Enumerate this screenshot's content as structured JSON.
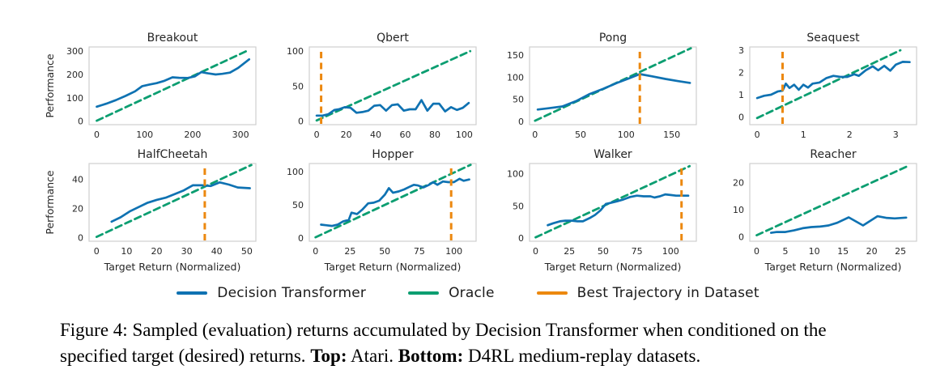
{
  "colors": {
    "decision_transformer": "#0f72b2",
    "oracle": "#0c9e71",
    "best_trajectory": "#ec880f",
    "axes_frame": "#cfcfcf",
    "text": "#262626"
  },
  "legend": {
    "items": [
      {
        "label": "Decision Transformer",
        "color": "#0f72b2",
        "style": "solid"
      },
      {
        "label": "Oracle",
        "color": "#0c9e71",
        "style": "solid"
      },
      {
        "label": "Best Trajectory in Dataset",
        "color": "#ec880f",
        "style": "solid"
      }
    ]
  },
  "caption": {
    "prefix": "Figure 4:",
    "body": "Sampled (evaluation) returns accumulated by Decision Transformer when conditioned on the specified target (desired) returns.",
    "top_label": "Top:",
    "top_text": "Atari.",
    "bottom_label": "Bottom:",
    "bottom_text": "D4RL medium-replay datasets."
  },
  "chart_data": [
    {
      "id": "breakout",
      "type": "line",
      "title": "Breakout",
      "ylabel": "Performance",
      "xlabel": null,
      "xlim": [
        -16,
        332
      ],
      "ylim": [
        -15,
        318
      ],
      "xticks": [
        0,
        100,
        200,
        300
      ],
      "yticks": [
        0,
        100,
        200,
        300
      ],
      "grid": false,
      "oracle": [
        [
          0,
          2
        ],
        [
          312,
          300
        ]
      ],
      "best_trajectory_x": null,
      "dt": [
        [
          0,
          62
        ],
        [
          20,
          75
        ],
        [
          40,
          90
        ],
        [
          60,
          108
        ],
        [
          80,
          128
        ],
        [
          95,
          150
        ],
        [
          110,
          157
        ],
        [
          125,
          163
        ],
        [
          140,
          172
        ],
        [
          158,
          188
        ],
        [
          172,
          186
        ],
        [
          190,
          185
        ],
        [
          205,
          192
        ],
        [
          218,
          210
        ],
        [
          232,
          205
        ],
        [
          248,
          200
        ],
        [
          262,
          203
        ],
        [
          278,
          208
        ],
        [
          295,
          228
        ],
        [
          318,
          265
        ]
      ]
    },
    {
      "id": "qbert",
      "type": "line",
      "title": "Qbert",
      "ylabel": null,
      "xlabel": null,
      "xlim": [
        -5,
        108
      ],
      "ylim": [
        -5,
        106
      ],
      "xticks": [
        0,
        20,
        40,
        60,
        80,
        100
      ],
      "yticks": [
        0,
        50,
        100
      ],
      "grid": false,
      "oracle": [
        [
          0,
          1
        ],
        [
          104,
          100
        ]
      ],
      "best_trajectory_x": 3,
      "dt": [
        [
          0,
          8
        ],
        [
          4,
          8
        ],
        [
          8,
          10
        ],
        [
          12,
          16
        ],
        [
          15,
          17
        ],
        [
          19,
          20
        ],
        [
          23,
          19
        ],
        [
          27,
          12
        ],
        [
          31,
          13
        ],
        [
          35,
          15
        ],
        [
          39,
          22
        ],
        [
          43,
          23
        ],
        [
          47,
          15
        ],
        [
          51,
          23
        ],
        [
          55,
          24
        ],
        [
          59,
          15
        ],
        [
          63,
          17
        ],
        [
          67,
          17
        ],
        [
          71,
          30
        ],
        [
          75,
          15
        ],
        [
          79,
          25
        ],
        [
          83,
          25
        ],
        [
          87,
          14
        ],
        [
          91,
          20
        ],
        [
          95,
          16
        ],
        [
          99,
          19
        ],
        [
          103,
          26
        ]
      ]
    },
    {
      "id": "pong",
      "type": "line",
      "title": "Pong",
      "ylabel": null,
      "xlabel": null,
      "xlim": [
        -6,
        177
      ],
      "ylim": [
        -7,
        168
      ],
      "xticks": [
        0,
        50,
        100,
        150
      ],
      "yticks": [
        0,
        50,
        100,
        150
      ],
      "grid": false,
      "oracle": [
        [
          0,
          2
        ],
        [
          171,
          165
        ]
      ],
      "best_trajectory_x": 115,
      "dt": [
        [
          3,
          27
        ],
        [
          15,
          30
        ],
        [
          30,
          34
        ],
        [
          45,
          46
        ],
        [
          60,
          62
        ],
        [
          75,
          74
        ],
        [
          90,
          87
        ],
        [
          103,
          97
        ],
        [
          115,
          107
        ],
        [
          128,
          102
        ],
        [
          143,
          96
        ],
        [
          157,
          91
        ],
        [
          170,
          87
        ]
      ]
    },
    {
      "id": "seaquest",
      "type": "line",
      "title": "Seaquest",
      "ylabel": null,
      "xlabel": null,
      "xlim": [
        -0.16,
        3.45
      ],
      "ylim": [
        -0.35,
        3.15
      ],
      "xticks": [
        0,
        1,
        2,
        3
      ],
      "yticks": [
        0,
        1,
        2,
        3
      ],
      "grid": false,
      "oracle": [
        [
          0,
          -0.05
        ],
        [
          3.1,
          3.0
        ]
      ],
      "best_trajectory_x": 0.55,
      "dt": [
        [
          0,
          0.85
        ],
        [
          0.15,
          0.95
        ],
        [
          0.3,
          1.0
        ],
        [
          0.45,
          1.15
        ],
        [
          0.55,
          1.18
        ],
        [
          0.62,
          1.5
        ],
        [
          0.7,
          1.3
        ],
        [
          0.8,
          1.45
        ],
        [
          0.9,
          1.22
        ],
        [
          1.0,
          1.45
        ],
        [
          1.1,
          1.32
        ],
        [
          1.2,
          1.5
        ],
        [
          1.35,
          1.55
        ],
        [
          1.5,
          1.75
        ],
        [
          1.65,
          1.85
        ],
        [
          1.8,
          1.8
        ],
        [
          1.95,
          1.8
        ],
        [
          2.1,
          1.92
        ],
        [
          2.2,
          1.85
        ],
        [
          2.35,
          2.1
        ],
        [
          2.5,
          2.28
        ],
        [
          2.62,
          2.1
        ],
        [
          2.75,
          2.3
        ],
        [
          2.88,
          2.08
        ],
        [
          3.0,
          2.35
        ],
        [
          3.15,
          2.48
        ],
        [
          3.3,
          2.47
        ]
      ]
    },
    {
      "id": "halfcheetah",
      "type": "line",
      "title": "HalfCheetah",
      "ylabel": "Performance",
      "xlabel": "Target Return (Normalized)",
      "xlim": [
        -2.5,
        53
      ],
      "ylim": [
        -2.5,
        51
      ],
      "xticks": [
        0,
        10,
        20,
        30,
        40,
        50
      ],
      "yticks": [
        0,
        20,
        40
      ],
      "grid": false,
      "oracle": [
        [
          0,
          0.5
        ],
        [
          51.5,
          50
        ]
      ],
      "best_trajectory_x": 36,
      "dt": [
        [
          5,
          11
        ],
        [
          8,
          14
        ],
        [
          11,
          18
        ],
        [
          14,
          21
        ],
        [
          17,
          24
        ],
        [
          20,
          26
        ],
        [
          23,
          27.5
        ],
        [
          26,
          30
        ],
        [
          29,
          32.5
        ],
        [
          32,
          36
        ],
        [
          35,
          36
        ],
        [
          38,
          35.5
        ],
        [
          41,
          38
        ],
        [
          44,
          36.5
        ],
        [
          47,
          34.5
        ],
        [
          51,
          34
        ]
      ]
    },
    {
      "id": "hopper",
      "type": "line",
      "title": "Hopper",
      "ylabel": null,
      "xlabel": "Target Return (Normalized)",
      "xlim": [
        -4.5,
        116
      ],
      "ylim": [
        -5,
        112
      ],
      "xticks": [
        0,
        25,
        50,
        75,
        100
      ],
      "yticks": [
        0,
        50,
        100
      ],
      "grid": false,
      "oracle": [
        [
          0,
          1
        ],
        [
          112,
          110
        ]
      ],
      "best_trajectory_x": 98,
      "dt": [
        [
          4,
          20
        ],
        [
          8,
          19
        ],
        [
          12,
          18
        ],
        [
          16,
          20
        ],
        [
          20,
          25
        ],
        [
          24,
          27
        ],
        [
          26,
          38
        ],
        [
          30,
          36
        ],
        [
          34,
          43
        ],
        [
          38,
          52
        ],
        [
          42,
          53
        ],
        [
          46,
          56
        ],
        [
          50,
          65
        ],
        [
          53,
          75
        ],
        [
          56,
          68
        ],
        [
          60,
          70
        ],
        [
          64,
          73
        ],
        [
          68,
          77
        ],
        [
          71,
          80
        ],
        [
          74,
          79
        ],
        [
          78,
          76
        ],
        [
          82,
          80
        ],
        [
          85,
          84
        ],
        [
          88,
          80
        ],
        [
          92,
          85
        ],
        [
          96,
          84
        ],
        [
          100,
          84
        ],
        [
          104,
          89
        ],
        [
          107,
          86
        ],
        [
          111,
          88
        ]
      ]
    },
    {
      "id": "walker",
      "type": "line",
      "title": "Walker",
      "ylabel": null,
      "xlabel": "Target Return (Normalized)",
      "xlim": [
        -4.5,
        119
      ],
      "ylim": [
        -5,
        116
      ],
      "xticks": [
        0,
        25,
        50,
        75,
        100
      ],
      "yticks": [
        0,
        50,
        100
      ],
      "grid": false,
      "oracle": [
        [
          0,
          1
        ],
        [
          114,
          112
        ]
      ],
      "best_trajectory_x": 108,
      "dt": [
        [
          9,
          20
        ],
        [
          13,
          23
        ],
        [
          18,
          26
        ],
        [
          22,
          27
        ],
        [
          27,
          27
        ],
        [
          31,
          26
        ],
        [
          35,
          26
        ],
        [
          40,
          31
        ],
        [
          44,
          36
        ],
        [
          48,
          43
        ],
        [
          52,
          53
        ],
        [
          56,
          55
        ],
        [
          60,
          57
        ],
        [
          65,
          60
        ],
        [
          70,
          64
        ],
        [
          75,
          66
        ],
        [
          80,
          65
        ],
        [
          85,
          65
        ],
        [
          88,
          63
        ],
        [
          92,
          65
        ],
        [
          96,
          68
        ],
        [
          100,
          67
        ],
        [
          104,
          66
        ],
        [
          108,
          66
        ],
        [
          113,
          66
        ]
      ]
    },
    {
      "id": "reacher",
      "type": "line",
      "title": "Reacher",
      "ylabel": null,
      "xlabel": "Target Return (Normalized)",
      "xlim": [
        -1.2,
        27.8
      ],
      "ylim": [
        -1.6,
        27
      ],
      "xticks": [
        0,
        5,
        10,
        15,
        20,
        25
      ],
      "yticks": [
        0,
        10,
        20
      ],
      "grid": false,
      "oracle": [
        [
          0,
          0.6
        ],
        [
          26.2,
          26
        ]
      ],
      "best_trajectory_x": null,
      "dt": [
        [
          2.5,
          1.5
        ],
        [
          3.5,
          1.8
        ],
        [
          5,
          1.8
        ],
        [
          6.5,
          2.4
        ],
        [
          8,
          3.2
        ],
        [
          9.5,
          3.6
        ],
        [
          11,
          3.8
        ],
        [
          12.5,
          4.2
        ],
        [
          14,
          5.2
        ],
        [
          16,
          7.2
        ],
        [
          18.5,
          4.2
        ],
        [
          21,
          7.6
        ],
        [
          22.5,
          7.0
        ],
        [
          24,
          6.8
        ],
        [
          26,
          7.1
        ]
      ]
    }
  ]
}
